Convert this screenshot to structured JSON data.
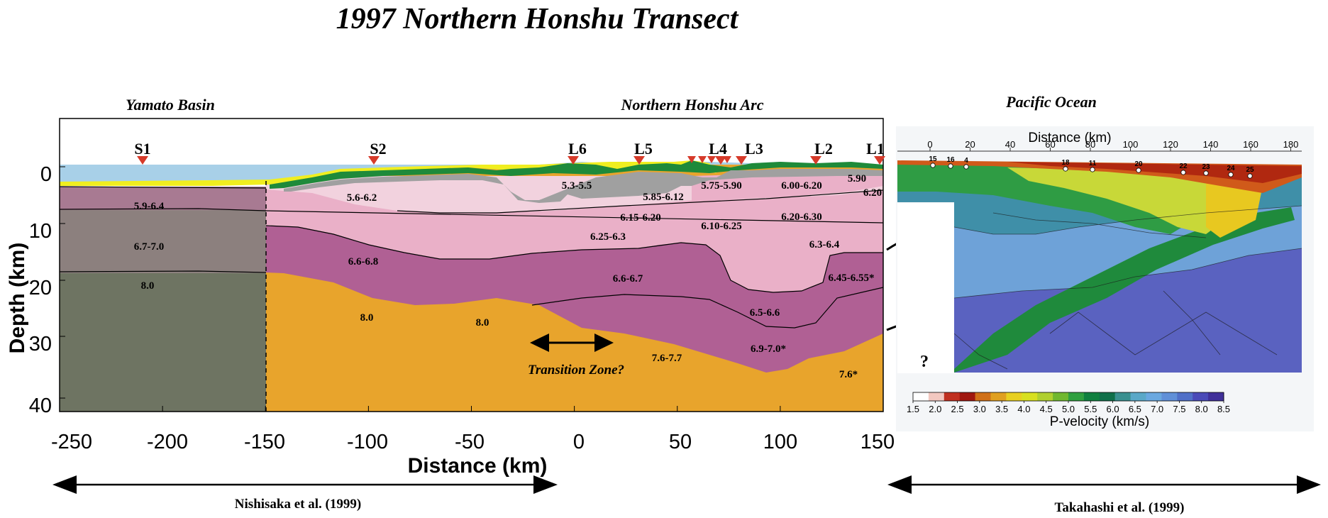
{
  "title": "1997 Northern Honshu Transect",
  "regions": {
    "yamato": "Yamato Basin",
    "arc": "Northern Honshu Arc",
    "pacific": "Pacific Ocean"
  },
  "left_panel": {
    "x_axis": {
      "label": "Distance (km)",
      "ticks": [
        "-250",
        "-200",
        "-150",
        "-100",
        "-50",
        "0",
        "50",
        "100",
        "150"
      ],
      "range": [
        -250,
        150
      ]
    },
    "y_axis": {
      "label": "Depth (km)",
      "ticks": [
        "0",
        "10",
        "20",
        "30",
        "40"
      ],
      "range": [
        -8,
        40
      ]
    },
    "stations": [
      "S1",
      "S2",
      "L6",
      "L5",
      "L4",
      "L3",
      "L2",
      "L1"
    ],
    "velocity_labels": {
      "v59_64": "5.9-6.4",
      "v67_70": "6.7-7.0",
      "v80_w": "8.0",
      "v56_62": "5.6-6.2",
      "v66_68": "6.6-6.8",
      "v80_a": "8.0",
      "v80_b": "8.0",
      "v53_55": "5.3-5.5",
      "v585_612": "5.85-6.12",
      "v575_590": "5.75-5.90",
      "v600_620": "6.00-6.20",
      "v590": "5.90",
      "v620": "6.20",
      "v615_620": "6.15-6.20",
      "v610_625": "6.10-6.25",
      "v620_630": "6.20-6.30",
      "v625_63": "6.25-6.3",
      "v63_64": "6.3-6.4",
      "v66_67": "6.6-6.7",
      "v645_655": "6.45-6.55*",
      "v65_66": "6.5-6.6",
      "v69_70": "6.9-7.0*",
      "v76_77": "7.6-7.7",
      "v76": "7.6*"
    },
    "transition_label": "Transition Zone?",
    "question_mark": "?",
    "citation": "Nishisaka et al. (1999)"
  },
  "right_panel": {
    "x_axis": {
      "label": "Distance (km)",
      "ticks": [
        "0",
        "20",
        "40",
        "60",
        "80",
        "100",
        "120",
        "140",
        "160",
        "180"
      ]
    },
    "obs_labels": [
      "15",
      "16",
      "4",
      "18",
      "11",
      "20",
      "22",
      "23",
      "24",
      "25"
    ],
    "colorbar": {
      "label": "P-velocity (km/s)",
      "ticks": [
        "1.5",
        "2.0",
        "2.5",
        "3.0",
        "3.5",
        "4.0",
        "4.5",
        "5.0",
        "5.5",
        "6.0",
        "6.5",
        "7.0",
        "7.5",
        "8.0",
        "8.5"
      ],
      "colors": [
        "#ffffff",
        "#f2c8c0",
        "#c03020",
        "#a01810",
        "#d07018",
        "#e0a020",
        "#e8d020",
        "#d8e020",
        "#b0d030",
        "#70b830",
        "#30a040",
        "#108040",
        "#10704a",
        "#3a9090",
        "#5aa8c8",
        "#6aa8e0",
        "#6090d8",
        "#5070c8",
        "#4a4ab8",
        "#40309a"
      ]
    },
    "citation": "Takahashi et al. (1999)"
  },
  "colors": {
    "water": "#a8d0e8",
    "sediment_yellow": "#f0ee20",
    "sediment_green": "#1e8a3a",
    "sediment_gray": "#a0a0a0",
    "upper_crust_light": "#f2d2de",
    "upper_crust": "#eab0c8",
    "lower_crust": "#b06094",
    "mantle": "#e8a42c",
    "western_mantle": "#6e7462",
    "western_lower": "#8c807e",
    "western_upper": "#a87a92",
    "station_marker": "#d63a2a"
  }
}
